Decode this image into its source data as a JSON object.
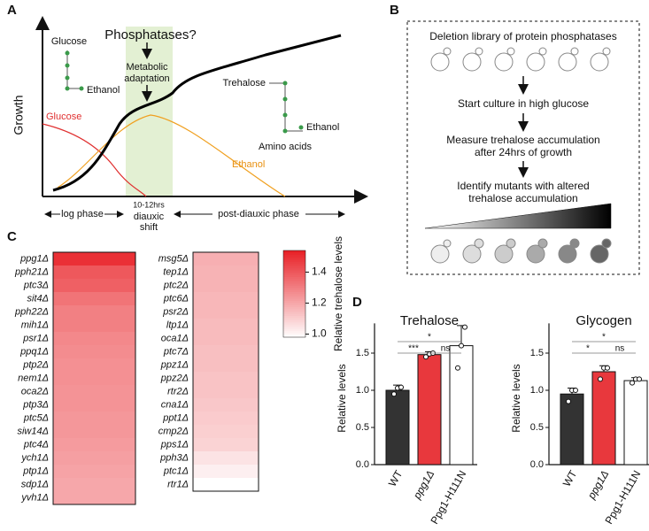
{
  "panel_a": {
    "letter": "A",
    "ylabel": "Growth",
    "question": "Phosphatases?",
    "adaptation": [
      "Metabolic",
      "adaptation"
    ],
    "glucose_icon": "Glucose",
    "ethanol_icon": "Ethanol",
    "trehalose_icon": "Trehalose",
    "ethanol_icon2": "Ethanol",
    "amino_icon": "Amino acids",
    "glucose_curve": "Glucose",
    "ethanol_curve": "Ethanol",
    "log_phase": "log phase",
    "shift_time": "10-12hrs",
    "shift": [
      "diauxic",
      "shift"
    ],
    "post_phase": "post-diauxic phase"
  },
  "panel_b": {
    "letter": "B",
    "library": "Deletion library of protein phosphatases",
    "step1": "Start culture in high glucose",
    "step2": [
      "Measure trehalose accumulation",
      "after 24hrs of growth"
    ],
    "step3": [
      "Identify mutants with altered",
      "trehalose accumulation"
    ]
  },
  "panel_c": {
    "letter": "C",
    "colorbar_label": "Relative trehalose levels",
    "clim": [
      0.98,
      1.54
    ],
    "cticks": [
      {
        "value": 1,
        "label": "1.0"
      },
      1.2,
      1.4
    ]
  },
  "panel_d": {
    "letter": "D"
  },
  "chart_data": [
    {
      "type": "heatmap",
      "categories": [
        "ppg1Δ",
        "pph21Δ",
        "ptc3Δ",
        "sit4Δ",
        "pph22Δ",
        "mih1Δ",
        "psr1Δ",
        "ppq1Δ",
        "ptp2Δ",
        "nem1Δ",
        "oca2Δ",
        "ptp3Δ",
        "ptc5Δ",
        "siw14Δ",
        "ptc4Δ",
        "ych1Δ",
        "ptp1Δ",
        "sdp1Δ",
        "yvh1Δ"
      ],
      "values": [
        1.5,
        1.4,
        1.38,
        1.33,
        1.3,
        1.3,
        1.28,
        1.27,
        1.26,
        1.26,
        1.25,
        1.25,
        1.24,
        1.24,
        1.23,
        1.22,
        1.21,
        1.2,
        1.2
      ]
    },
    {
      "type": "heatmap",
      "categories": [
        "msg5Δ",
        "tep1Δ",
        "ptc2Δ",
        "ptc6Δ",
        "psr2Δ",
        "ltp1Δ",
        "oca1Δ",
        "ptc7Δ",
        "ppz1Δ",
        "ppz2Δ",
        "rtr2Δ",
        "cna1Δ",
        "ppt1Δ",
        "cmp2Δ",
        "pps1Δ",
        "pph3Δ",
        "ptc1Δ",
        "rtr1Δ"
      ],
      "values": [
        1.18,
        1.17,
        1.17,
        1.16,
        1.16,
        1.15,
        1.15,
        1.14,
        1.14,
        1.13,
        1.13,
        1.12,
        1.11,
        1.1,
        1.09,
        1.05,
        1.02,
        0.98
      ]
    },
    {
      "type": "bar",
      "title": "Trehalose",
      "ylabel": "Relative levels",
      "categories": [
        "WT",
        "ppg1Δ",
        "Ppg1-H111N"
      ],
      "values": [
        1.0,
        1.48,
        1.6
      ],
      "errors": [
        0.07,
        0.04,
        0.27
      ],
      "points": [
        [
          0.95,
          1.03,
          1.04
        ],
        [
          1.45,
          1.49,
          1.5
        ],
        [
          1.3,
          1.6,
          1.85
        ]
      ],
      "colors": [
        "#333333",
        "#e8383d",
        "#ffffff"
      ],
      "ylim": [
        0,
        1.9
      ],
      "yticks": [
        {
          "value": 0,
          "label": "0.0"
        },
        0.5,
        {
          "value": 1,
          "label": "1.0"
        },
        1.5
      ],
      "annotations": [
        {
          "text": "*",
          "from": 0,
          "to": 2
        },
        {
          "text": "***",
          "from": 0,
          "to": 1
        },
        {
          "text": "ns",
          "from": 1,
          "to": 2
        }
      ]
    },
    {
      "type": "bar",
      "title": "Glycogen",
      "ylabel": "Relative levels",
      "categories": [
        "WT",
        "ppg1Δ",
        "Ppg1-H111N"
      ],
      "values": [
        0.95,
        1.25,
        1.13
      ],
      "errors": [
        0.08,
        0.08,
        0.04
      ],
      "points": [
        [
          0.85,
          1.0,
          1.0
        ],
        [
          1.15,
          1.3,
          1.3
        ],
        [
          1.1,
          1.15,
          1.15
        ]
      ],
      "colors": [
        "#333333",
        "#e8383d",
        "#ffffff"
      ],
      "ylim": [
        0,
        1.9
      ],
      "yticks": [
        {
          "value": 0,
          "label": "0.0"
        },
        0.5,
        {
          "value": 1,
          "label": "1.0"
        },
        1.5
      ],
      "annotations": [
        {
          "text": "*",
          "from": 0,
          "to": 2
        },
        {
          "text": "*",
          "from": 0,
          "to": 1
        },
        {
          "text": "ns",
          "from": 1,
          "to": 2
        }
      ]
    }
  ]
}
